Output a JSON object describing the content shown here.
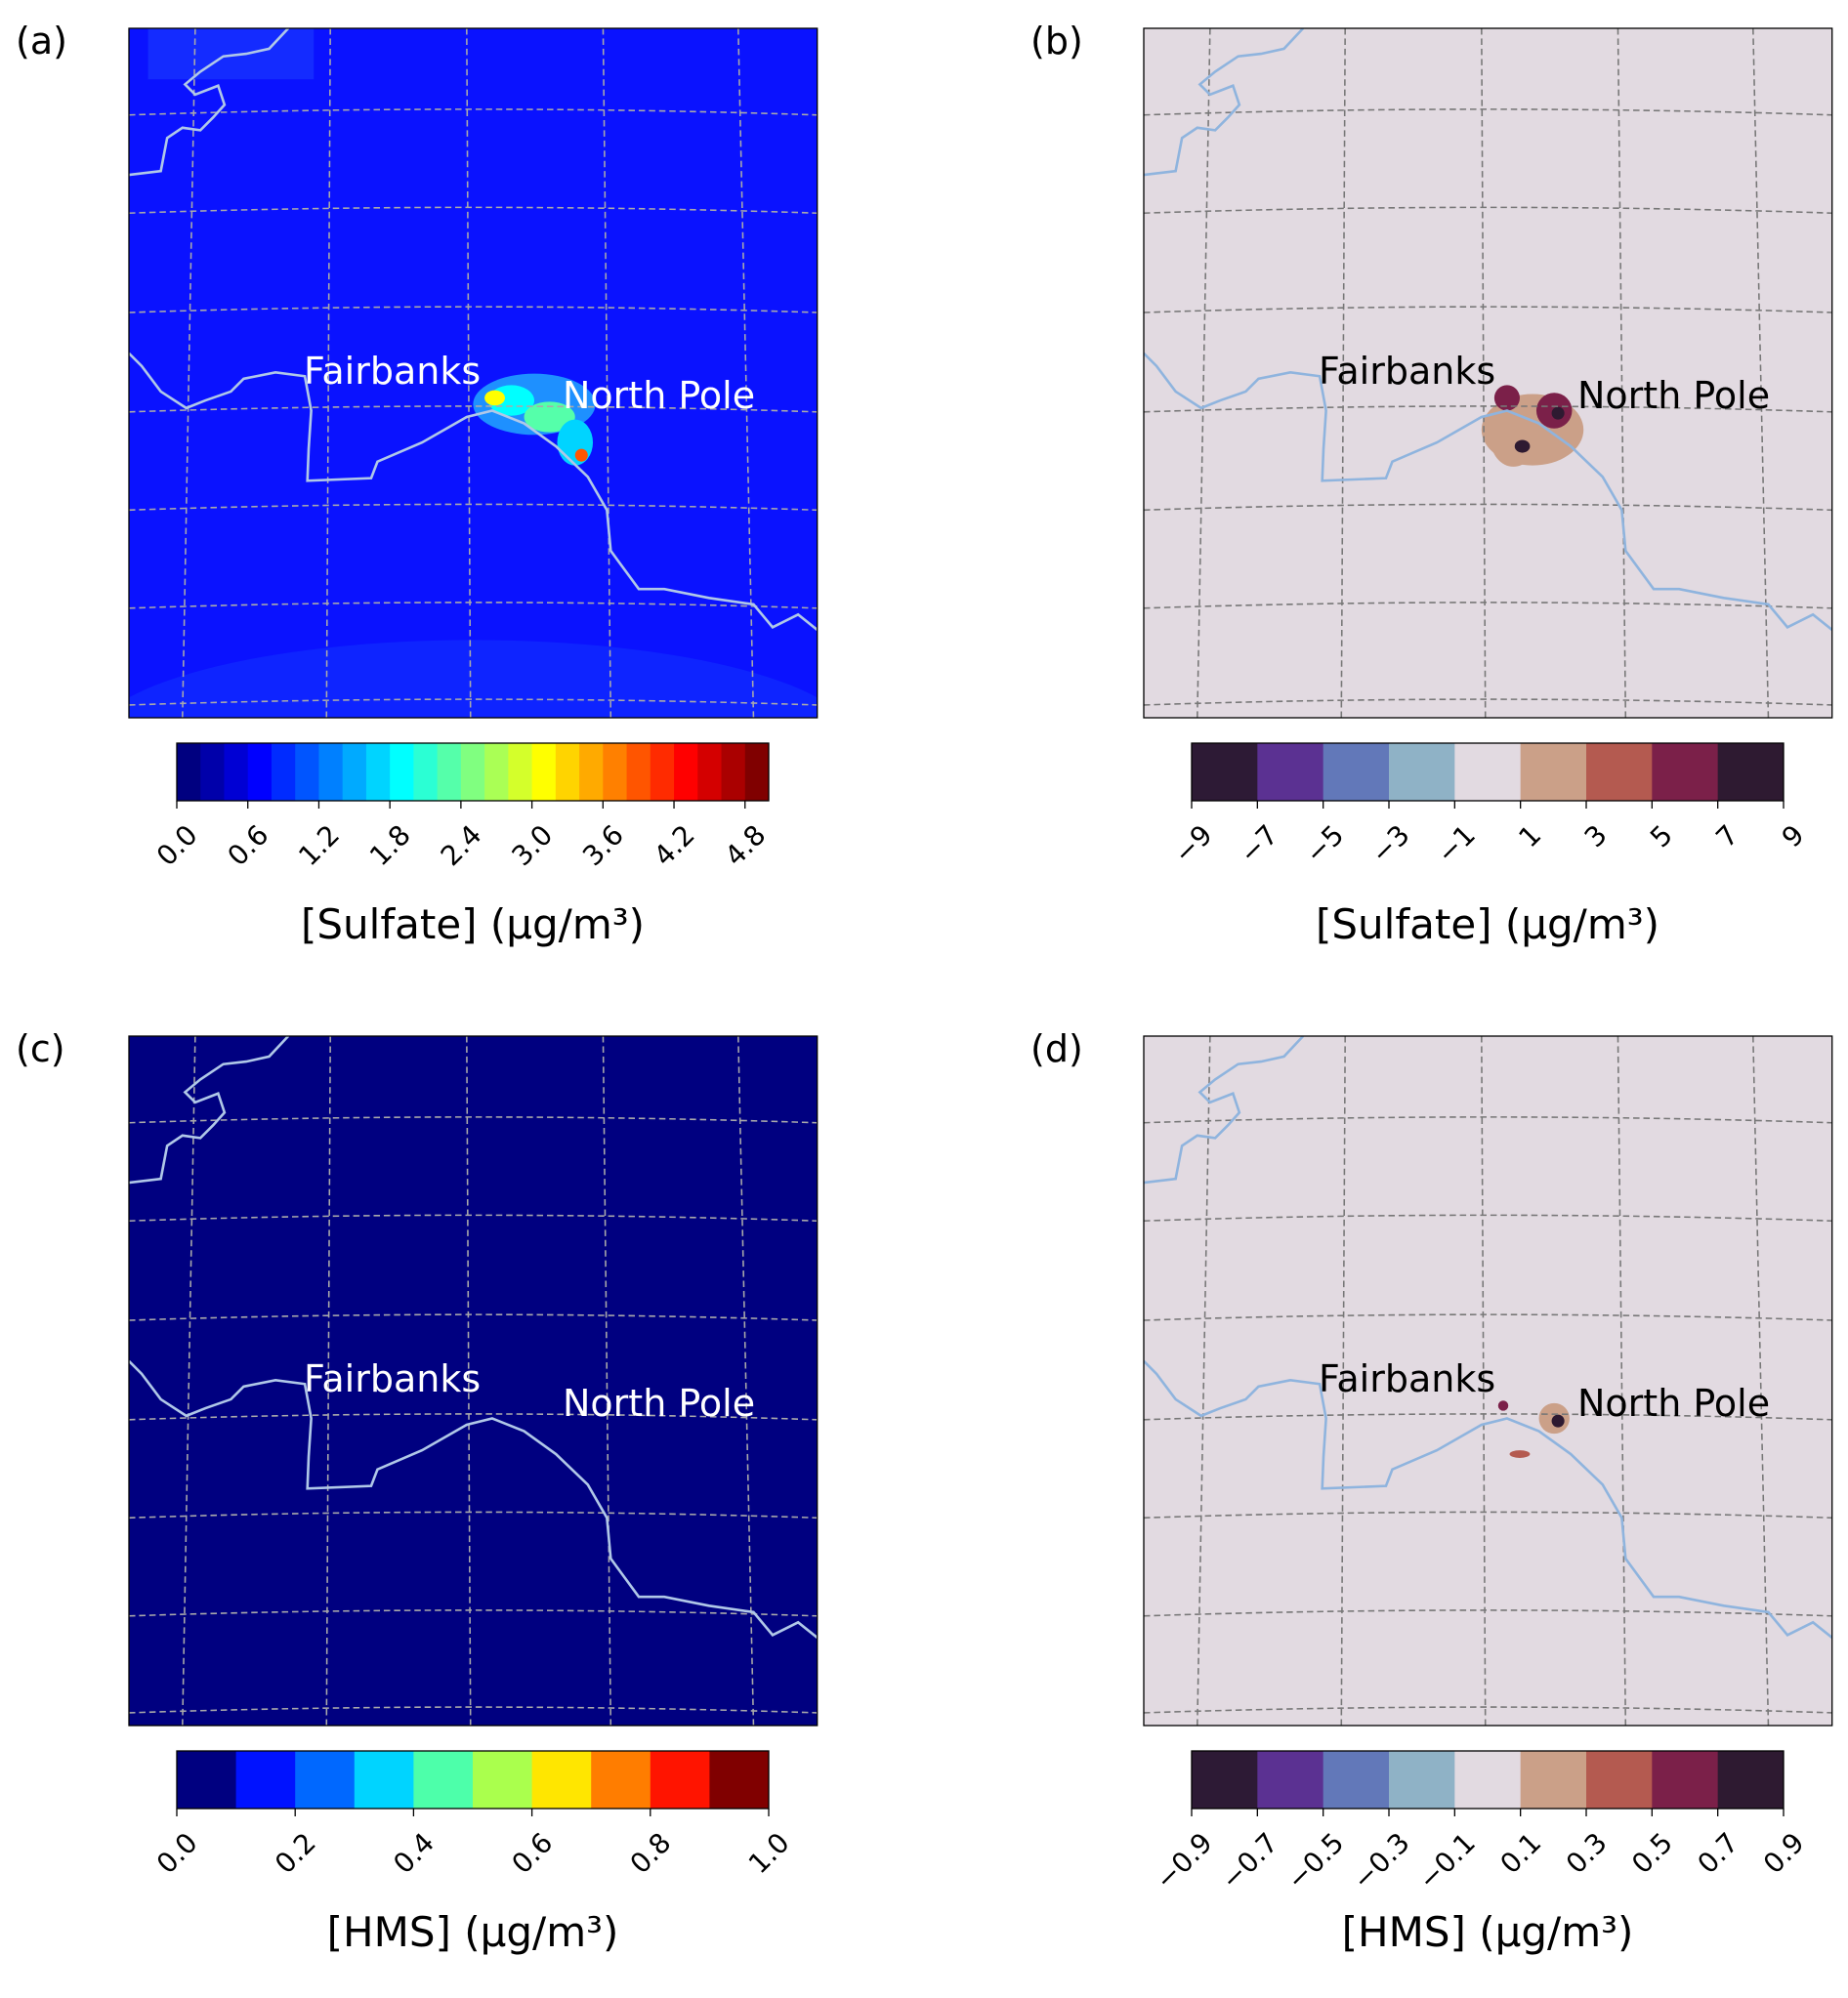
{
  "panels": [
    {
      "label": "(a)",
      "places": [
        "Fairbanks",
        "North Pole"
      ],
      "background": "#0a12ff",
      "colorbar": {
        "lim": [
          0,
          5
        ],
        "colors": [
          "#000080",
          "#0000aa",
          "#0000d4",
          "#0000ff",
          "#002bff",
          "#0055ff",
          "#0080ff",
          "#00aaff",
          "#00d4ff",
          "#00ffff",
          "#2bffd4",
          "#55ffaa",
          "#80ff80",
          "#aaff55",
          "#d4ff2b",
          "#ffff00",
          "#ffd400",
          "#ffaa00",
          "#ff8000",
          "#ff5500",
          "#ff2b00",
          "#ff0000",
          "#d40000",
          "#aa0000",
          "#800000"
        ],
        "ticks": [
          {
            "value": 0,
            "label": "0.0"
          },
          0.6,
          1.2,
          1.8,
          2.4,
          {
            "value": 3,
            "label": "3.0"
          },
          3.6,
          4.2,
          4.8
        ],
        "label": "[Sulfate] (μg/m³)"
      }
    },
    {
      "label": "(b)",
      "places": [
        "Fairbanks",
        "North Pole"
      ],
      "background": "#e2dae1",
      "colorbar": {
        "lim": [
          -9,
          9
        ],
        "colors": [
          "#2d1a35",
          "#5b3192",
          "#6278b9",
          "#8fb2c6",
          "#e2dae1",
          "#cba088",
          "#b45a50",
          "#7b2049",
          "#2e1a31"
        ],
        "ticks": [
          {
            "value": -9,
            "label": "−9"
          },
          {
            "value": -7,
            "label": "−7"
          },
          {
            "value": -5,
            "label": "−5"
          },
          {
            "value": -3,
            "label": "−3"
          },
          {
            "value": -1,
            "label": "−1"
          },
          1,
          3,
          5,
          7,
          9
        ],
        "label": "[Sulfate] (μg/m³)"
      }
    },
    {
      "label": "(c)",
      "places": [
        "Fairbanks",
        "North Pole"
      ],
      "background": "#000080",
      "colorbar": {
        "lim": [
          0,
          1
        ],
        "colors": [
          "#000080",
          "#0012ff",
          "#0068ff",
          "#00d4ff",
          "#4dffaa",
          "#aaff4d",
          "#ffe600",
          "#ff7d00",
          "#ff1400",
          "#800000"
        ],
        "ticks": [
          {
            "value": 0,
            "label": "0.0"
          },
          0.2,
          0.4,
          0.6,
          0.8,
          {
            "value": 1,
            "label": "1.0"
          }
        ],
        "label": "[HMS] (μg/m³)"
      }
    },
    {
      "label": "(d)",
      "places": [
        "Fairbanks",
        "North Pole"
      ],
      "background": "#e2dae1",
      "colorbar": {
        "lim": [
          -0.9,
          0.9
        ],
        "colors": [
          "#2d1a35",
          "#5b3192",
          "#6278b9",
          "#8fb2c6",
          "#e2dae1",
          "#cba088",
          "#b45a50",
          "#7b2049",
          "#2e1a31"
        ],
        "ticks": [
          {
            "value": -0.9,
            "label": "−0.9"
          },
          {
            "value": -0.7,
            "label": "−0.7"
          },
          {
            "value": -0.5,
            "label": "−0.5"
          },
          {
            "value": -0.3,
            "label": "−0.3"
          },
          {
            "value": -0.1,
            "label": "−0.1"
          },
          0.1,
          0.3,
          0.5,
          0.7,
          0.9
        ],
        "label": "[HMS] (μg/m³)"
      }
    }
  ]
}
